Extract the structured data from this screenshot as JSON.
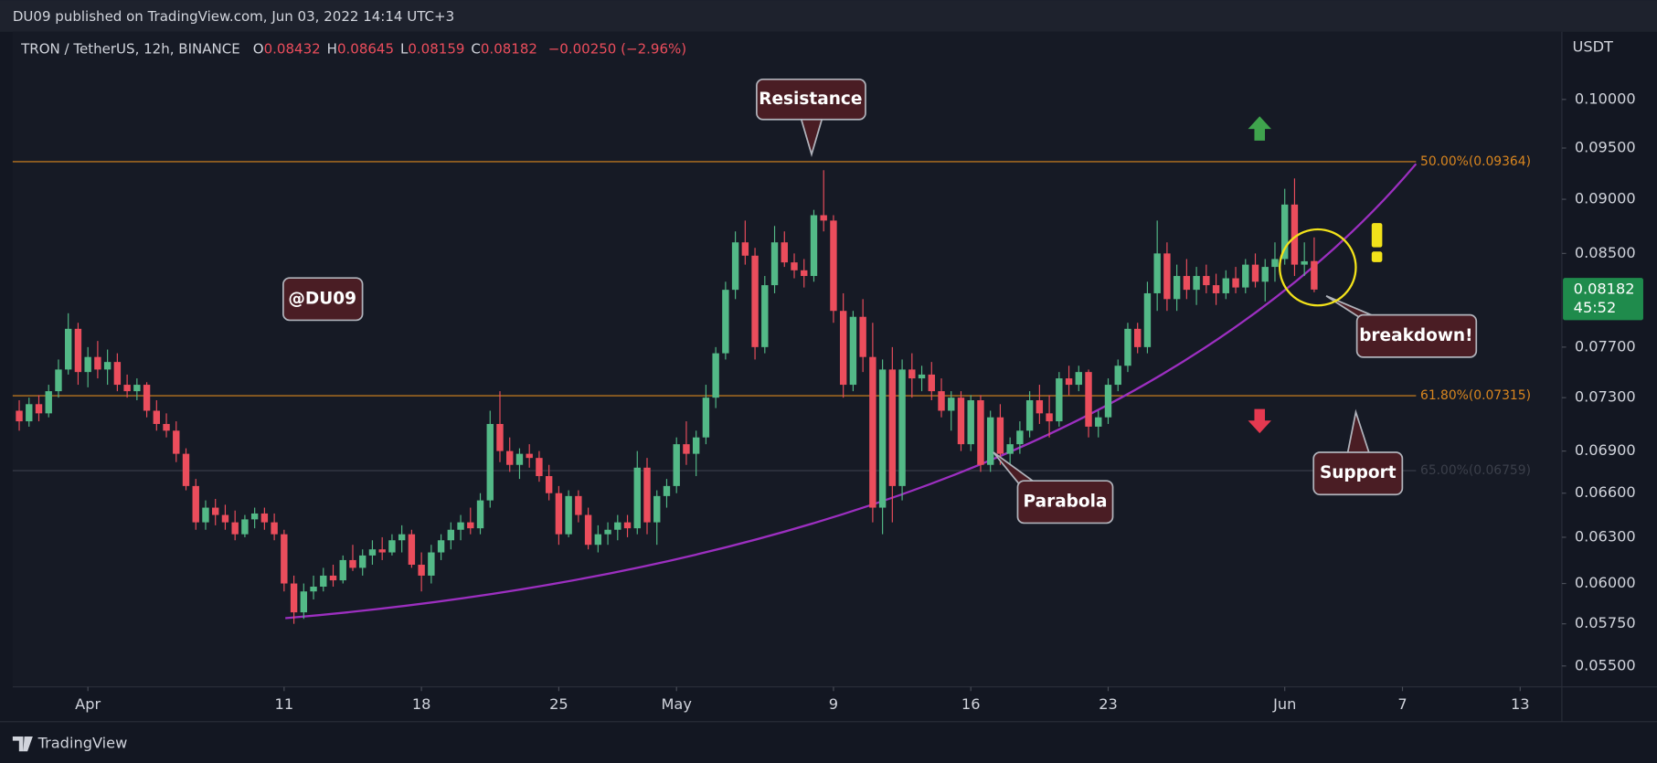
{
  "header": {
    "published": "DU09 published on TradingView.com, Jun 03, 2022 14:14 UTC+3",
    "brand": "TradingView"
  },
  "chart_data": {
    "type": "candlestick",
    "symbol": "TRON / TetherUS, 12h, BINANCE",
    "ohlc_legend": [
      {
        "key": "O",
        "value": "0.08432"
      },
      {
        "key": "H",
        "value": "0.08645"
      },
      {
        "key": "L",
        "value": "0.08159"
      },
      {
        "key": "C",
        "value": "0.08182"
      }
    ],
    "change": "−0.00250 (−2.96%)",
    "currency": "USDT",
    "log_scale": true,
    "up_color": "#53b987",
    "down_color": "#eb4d5c",
    "x": [
      "2022-03-28T12:00",
      "2022-03-29T00:00",
      "2022-03-29T12:00",
      "2022-03-30T00:00",
      "2022-03-30T12:00",
      "2022-03-31T00:00",
      "2022-03-31T12:00",
      "2022-04-01T00:00",
      "2022-04-01T12:00",
      "2022-04-02T00:00",
      "2022-04-02T12:00",
      "2022-04-03T00:00",
      "2022-04-03T12:00",
      "2022-04-04T00:00",
      "2022-04-04T12:00",
      "2022-04-05T00:00",
      "2022-04-05T12:00",
      "2022-04-06T00:00",
      "2022-04-06T12:00",
      "2022-04-07T00:00",
      "2022-04-07T12:00",
      "2022-04-08T00:00",
      "2022-04-08T12:00",
      "2022-04-09T00:00",
      "2022-04-09T12:00",
      "2022-04-10T00:00",
      "2022-04-10T12:00",
      "2022-04-11T00:00",
      "2022-04-11T12:00",
      "2022-04-12T00:00",
      "2022-04-12T12:00",
      "2022-04-13T00:00",
      "2022-04-13T12:00",
      "2022-04-14T00:00",
      "2022-04-14T12:00",
      "2022-04-15T00:00",
      "2022-04-15T12:00",
      "2022-04-16T00:00",
      "2022-04-16T12:00",
      "2022-04-17T00:00",
      "2022-04-17T12:00",
      "2022-04-18T00:00",
      "2022-04-18T12:00",
      "2022-04-19T00:00",
      "2022-04-19T12:00",
      "2022-04-20T00:00",
      "2022-04-20T12:00",
      "2022-04-21T00:00",
      "2022-04-21T12:00",
      "2022-04-22T00:00",
      "2022-04-22T12:00",
      "2022-04-23T00:00",
      "2022-04-23T12:00",
      "2022-04-24T00:00",
      "2022-04-24T12:00",
      "2022-04-25T00:00",
      "2022-04-25T12:00",
      "2022-04-26T00:00",
      "2022-04-26T12:00",
      "2022-04-27T00:00",
      "2022-04-27T12:00",
      "2022-04-28T00:00",
      "2022-04-28T12:00",
      "2022-04-29T00:00",
      "2022-04-29T12:00",
      "2022-04-30T00:00",
      "2022-04-30T12:00",
      "2022-05-01T00:00",
      "2022-05-01T12:00",
      "2022-05-02T00:00",
      "2022-05-02T12:00",
      "2022-05-03T00:00",
      "2022-05-03T12:00",
      "2022-05-04T00:00",
      "2022-05-04T12:00",
      "2022-05-05T00:00",
      "2022-05-05T12:00",
      "2022-05-06T00:00",
      "2022-05-06T12:00",
      "2022-05-07T00:00",
      "2022-05-07T12:00",
      "2022-05-08T00:00",
      "2022-05-08T12:00",
      "2022-05-09T00:00",
      "2022-05-09T12:00",
      "2022-05-10T00:00",
      "2022-05-10T12:00",
      "2022-05-11T00:00",
      "2022-05-11T12:00",
      "2022-05-12T00:00",
      "2022-05-12T12:00",
      "2022-05-13T00:00",
      "2022-05-13T12:00",
      "2022-05-14T00:00",
      "2022-05-14T12:00",
      "2022-05-15T00:00",
      "2022-05-15T12:00",
      "2022-05-16T00:00",
      "2022-05-16T12:00",
      "2022-05-17T00:00",
      "2022-05-17T12:00",
      "2022-05-18T00:00",
      "2022-05-18T12:00",
      "2022-05-19T00:00",
      "2022-05-19T12:00",
      "2022-05-20T00:00",
      "2022-05-20T12:00",
      "2022-05-21T00:00",
      "2022-05-21T12:00",
      "2022-05-22T00:00",
      "2022-05-22T12:00",
      "2022-05-23T00:00",
      "2022-05-23T12:00",
      "2022-05-24T00:00",
      "2022-05-24T12:00",
      "2022-05-25T00:00",
      "2022-05-25T12:00",
      "2022-05-26T00:00",
      "2022-05-26T12:00",
      "2022-05-27T00:00",
      "2022-05-27T12:00",
      "2022-05-28T00:00",
      "2022-05-28T12:00",
      "2022-05-29T00:00",
      "2022-05-29T12:00",
      "2022-05-30T00:00",
      "2022-05-30T12:00",
      "2022-05-31T00:00",
      "2022-05-31T12:00",
      "2022-06-01T00:00",
      "2022-06-01T12:00",
      "2022-06-02T00:00",
      "2022-06-02T12:00"
    ],
    "ohlc": [
      [
        0.072,
        0.0728,
        0.0705,
        0.0712
      ],
      [
        0.0712,
        0.073,
        0.0708,
        0.0725
      ],
      [
        0.0725,
        0.0732,
        0.0712,
        0.0718
      ],
      [
        0.0718,
        0.074,
        0.0715,
        0.0735
      ],
      [
        0.0735,
        0.076,
        0.073,
        0.0752
      ],
      [
        0.0752,
        0.0798,
        0.0748,
        0.0785
      ],
      [
        0.0785,
        0.079,
        0.074,
        0.075
      ],
      [
        0.075,
        0.077,
        0.0738,
        0.0762
      ],
      [
        0.0762,
        0.0775,
        0.0745,
        0.0752
      ],
      [
        0.0752,
        0.0768,
        0.074,
        0.0758
      ],
      [
        0.0758,
        0.0765,
        0.0735,
        0.074
      ],
      [
        0.074,
        0.0748,
        0.073,
        0.0735
      ],
      [
        0.0735,
        0.0745,
        0.0728,
        0.074
      ],
      [
        0.074,
        0.0742,
        0.0715,
        0.072
      ],
      [
        0.072,
        0.0728,
        0.0705,
        0.071
      ],
      [
        0.071,
        0.0718,
        0.07,
        0.0705
      ],
      [
        0.0705,
        0.0712,
        0.0682,
        0.0688
      ],
      [
        0.0688,
        0.0692,
        0.0662,
        0.0665
      ],
      [
        0.0665,
        0.067,
        0.0635,
        0.064
      ],
      [
        0.064,
        0.0655,
        0.0635,
        0.065
      ],
      [
        0.065,
        0.0656,
        0.0638,
        0.0645
      ],
      [
        0.0645,
        0.0652,
        0.0635,
        0.064
      ],
      [
        0.064,
        0.0648,
        0.0628,
        0.0632
      ],
      [
        0.0632,
        0.0645,
        0.063,
        0.0642
      ],
      [
        0.0642,
        0.065,
        0.0636,
        0.0646
      ],
      [
        0.0646,
        0.065,
        0.0635,
        0.064
      ],
      [
        0.064,
        0.0646,
        0.0628,
        0.0632
      ],
      [
        0.0632,
        0.0635,
        0.0595,
        0.06
      ],
      [
        0.06,
        0.0605,
        0.0575,
        0.0582
      ],
      [
        0.0582,
        0.06,
        0.0578,
        0.0595
      ],
      [
        0.0595,
        0.0605,
        0.059,
        0.0598
      ],
      [
        0.0598,
        0.061,
        0.0595,
        0.0605
      ],
      [
        0.0605,
        0.0612,
        0.0598,
        0.0602
      ],
      [
        0.0602,
        0.0618,
        0.06,
        0.0615
      ],
      [
        0.0615,
        0.0625,
        0.0608,
        0.061
      ],
      [
        0.061,
        0.0622,
        0.0605,
        0.0618
      ],
      [
        0.0618,
        0.0628,
        0.0612,
        0.0622
      ],
      [
        0.0622,
        0.063,
        0.0615,
        0.062
      ],
      [
        0.062,
        0.0632,
        0.0618,
        0.0628
      ],
      [
        0.0628,
        0.0638,
        0.062,
        0.0632
      ],
      [
        0.0632,
        0.0635,
        0.061,
        0.0612
      ],
      [
        0.0612,
        0.062,
        0.0595,
        0.0605
      ],
      [
        0.0605,
        0.0625,
        0.06,
        0.062
      ],
      [
        0.062,
        0.0632,
        0.0615,
        0.0628
      ],
      [
        0.0628,
        0.064,
        0.0622,
        0.0635
      ],
      [
        0.0635,
        0.0645,
        0.0628,
        0.064
      ],
      [
        0.064,
        0.065,
        0.0632,
        0.0636
      ],
      [
        0.0636,
        0.066,
        0.0632,
        0.0655
      ],
      [
        0.0655,
        0.072,
        0.065,
        0.071
      ],
      [
        0.071,
        0.0735,
        0.0682,
        0.069
      ],
      [
        0.069,
        0.07,
        0.0675,
        0.068
      ],
      [
        0.068,
        0.0692,
        0.067,
        0.0688
      ],
      [
        0.0688,
        0.0695,
        0.0678,
        0.0685
      ],
      [
        0.0685,
        0.069,
        0.0668,
        0.0672
      ],
      [
        0.0672,
        0.068,
        0.0655,
        0.066
      ],
      [
        0.066,
        0.0665,
        0.0625,
        0.0632
      ],
      [
        0.0632,
        0.0662,
        0.063,
        0.0658
      ],
      [
        0.0658,
        0.0662,
        0.064,
        0.0645
      ],
      [
        0.0645,
        0.065,
        0.0622,
        0.0625
      ],
      [
        0.0625,
        0.0638,
        0.062,
        0.0632
      ],
      [
        0.0632,
        0.064,
        0.0625,
        0.0635
      ],
      [
        0.0635,
        0.0645,
        0.0628,
        0.064
      ],
      [
        0.064,
        0.0645,
        0.063,
        0.0636
      ],
      [
        0.0636,
        0.069,
        0.0632,
        0.0678
      ],
      [
        0.0678,
        0.0685,
        0.0632,
        0.064
      ],
      [
        0.064,
        0.0662,
        0.0625,
        0.0658
      ],
      [
        0.0658,
        0.067,
        0.065,
        0.0665
      ],
      [
        0.0665,
        0.07,
        0.066,
        0.0695
      ],
      [
        0.0695,
        0.0712,
        0.068,
        0.0688
      ],
      [
        0.0688,
        0.0705,
        0.0672,
        0.07
      ],
      [
        0.07,
        0.074,
        0.0695,
        0.073
      ],
      [
        0.073,
        0.077,
        0.0722,
        0.0765
      ],
      [
        0.0765,
        0.0825,
        0.076,
        0.0818
      ],
      [
        0.0818,
        0.087,
        0.081,
        0.086
      ],
      [
        0.086,
        0.088,
        0.084,
        0.0848
      ],
      [
        0.0848,
        0.0855,
        0.076,
        0.077
      ],
      [
        0.077,
        0.083,
        0.0765,
        0.0822
      ],
      [
        0.0822,
        0.0875,
        0.0815,
        0.086
      ],
      [
        0.086,
        0.087,
        0.0838,
        0.0842
      ],
      [
        0.0842,
        0.085,
        0.0828,
        0.0835
      ],
      [
        0.0835,
        0.0845,
        0.082,
        0.083
      ],
      [
        0.083,
        0.089,
        0.0825,
        0.0885
      ],
      [
        0.0885,
        0.0928,
        0.087,
        0.088
      ],
      [
        0.088,
        0.0885,
        0.079,
        0.08
      ],
      [
        0.08,
        0.0815,
        0.073,
        0.074
      ],
      [
        0.074,
        0.08,
        0.0735,
        0.0795
      ],
      [
        0.0795,
        0.081,
        0.075,
        0.0762
      ],
      [
        0.0762,
        0.079,
        0.064,
        0.065
      ],
      [
        0.065,
        0.076,
        0.0632,
        0.0752
      ],
      [
        0.0752,
        0.077,
        0.064,
        0.0665
      ],
      [
        0.0665,
        0.076,
        0.0655,
        0.0752
      ],
      [
        0.0752,
        0.0765,
        0.073,
        0.0745
      ],
      [
        0.0745,
        0.0755,
        0.0735,
        0.0748
      ],
      [
        0.0748,
        0.0758,
        0.0728,
        0.0735
      ],
      [
        0.0735,
        0.0745,
        0.0715,
        0.072
      ],
      [
        0.072,
        0.0735,
        0.0705,
        0.073
      ],
      [
        0.073,
        0.0735,
        0.069,
        0.0695
      ],
      [
        0.0695,
        0.0732,
        0.069,
        0.0728
      ],
      [
        0.0728,
        0.0732,
        0.0675,
        0.068
      ],
      [
        0.068,
        0.072,
        0.0675,
        0.0715
      ],
      [
        0.0715,
        0.0725,
        0.068,
        0.0688
      ],
      [
        0.0688,
        0.07,
        0.0678,
        0.0695
      ],
      [
        0.0695,
        0.0712,
        0.0688,
        0.0705
      ],
      [
        0.0705,
        0.0735,
        0.07,
        0.0728
      ],
      [
        0.0728,
        0.074,
        0.071,
        0.0718
      ],
      [
        0.0718,
        0.0732,
        0.07,
        0.0712
      ],
      [
        0.0712,
        0.075,
        0.0708,
        0.0745
      ],
      [
        0.0745,
        0.0755,
        0.0732,
        0.074
      ],
      [
        0.074,
        0.0755,
        0.0735,
        0.075
      ],
      [
        0.075,
        0.0752,
        0.07,
        0.0708
      ],
      [
        0.0708,
        0.072,
        0.07,
        0.0715
      ],
      [
        0.0715,
        0.0745,
        0.071,
        0.074
      ],
      [
        0.074,
        0.076,
        0.0735,
        0.0755
      ],
      [
        0.0755,
        0.079,
        0.075,
        0.0785
      ],
      [
        0.0785,
        0.079,
        0.0765,
        0.077
      ],
      [
        0.077,
        0.0825,
        0.0765,
        0.0815
      ],
      [
        0.0815,
        0.088,
        0.08,
        0.085
      ],
      [
        0.085,
        0.086,
        0.08,
        0.081
      ],
      [
        0.081,
        0.084,
        0.08,
        0.083
      ],
      [
        0.083,
        0.0845,
        0.081,
        0.0818
      ],
      [
        0.0818,
        0.0838,
        0.0805,
        0.083
      ],
      [
        0.083,
        0.084,
        0.0815,
        0.0822
      ],
      [
        0.0822,
        0.0832,
        0.0805,
        0.0815
      ],
      [
        0.0815,
        0.0835,
        0.081,
        0.0828
      ],
      [
        0.0828,
        0.0838,
        0.0815,
        0.082
      ],
      [
        0.082,
        0.0845,
        0.0815,
        0.084
      ],
      [
        0.084,
        0.085,
        0.082,
        0.0825
      ],
      [
        0.0825,
        0.0845,
        0.0808,
        0.0838
      ],
      [
        0.0838,
        0.086,
        0.0825,
        0.0845
      ],
      [
        0.0845,
        0.091,
        0.084,
        0.0895
      ],
      [
        0.0895,
        0.092,
        0.083,
        0.084
      ],
      [
        0.084,
        0.086,
        0.083,
        0.0843
      ],
      [
        0.08432,
        0.08645,
        0.08159,
        0.08182
      ]
    ],
    "xlim": [
      "2022-03-28T04:00",
      "2022-06-15T03:00"
    ],
    "ylim": [
      0.0538,
      0.1074
    ],
    "yticks": [
      {
        "value": 0.1,
        "label": "0.10000"
      },
      {
        "value": 0.095,
        "label": "0.09500"
      },
      {
        "value": 0.09,
        "label": "0.09000"
      },
      {
        "value": 0.085,
        "label": "0.08500"
      },
      {
        "value": 0.077,
        "label": "0.07700"
      },
      {
        "value": 0.073,
        "label": "0.07300"
      },
      {
        "value": 0.069,
        "label": "0.06900"
      },
      {
        "value": 0.066,
        "label": "0.06600"
      },
      {
        "value": 0.063,
        "label": "0.06300"
      },
      {
        "value": 0.06,
        "label": "0.06000"
      },
      {
        "value": 0.0575,
        "label": "0.05750"
      },
      {
        "value": 0.055,
        "label": "0.05500"
      }
    ],
    "xticks": [
      {
        "value": "2022-04-01T00:00",
        "label": "Apr"
      },
      {
        "value": "2022-04-11T00:00",
        "label": "11"
      },
      {
        "value": "2022-04-18T00:00",
        "label": "18"
      },
      {
        "value": "2022-04-25T00:00",
        "label": "25"
      },
      {
        "value": "2022-05-01T00:00",
        "label": "May"
      },
      {
        "value": "2022-05-09T00:00",
        "label": "9"
      },
      {
        "value": "2022-05-16T00:00",
        "label": "16"
      },
      {
        "value": "2022-05-23T00:00",
        "label": "23"
      },
      {
        "value": "2022-06-01T00:00",
        "label": "Jun"
      },
      {
        "value": "2022-06-07T00:00",
        "label": "7"
      },
      {
        "value": "2022-06-13T00:00",
        "label": "13"
      }
    ],
    "fib_levels": [
      {
        "value": 0.09364,
        "label": "50.00%(0.09364)",
        "color": "#d9861f"
      },
      {
        "value": 0.07315,
        "label": "61.80%(0.07315)",
        "color": "#d9861f"
      },
      {
        "value": 0.06759,
        "label": "65.00%(0.06759)",
        "color": "#3b3f4a"
      }
    ],
    "price_tag": {
      "value": 0.08182,
      "countdown": "45:52",
      "color": "#1f8b4c"
    },
    "parabola_color": "#9c2fc0",
    "annotations": {
      "resistance": "Resistance",
      "watermark": "@DU09",
      "breakdown": "breakdown!",
      "parabola": "Parabola",
      "support": "Support"
    }
  }
}
